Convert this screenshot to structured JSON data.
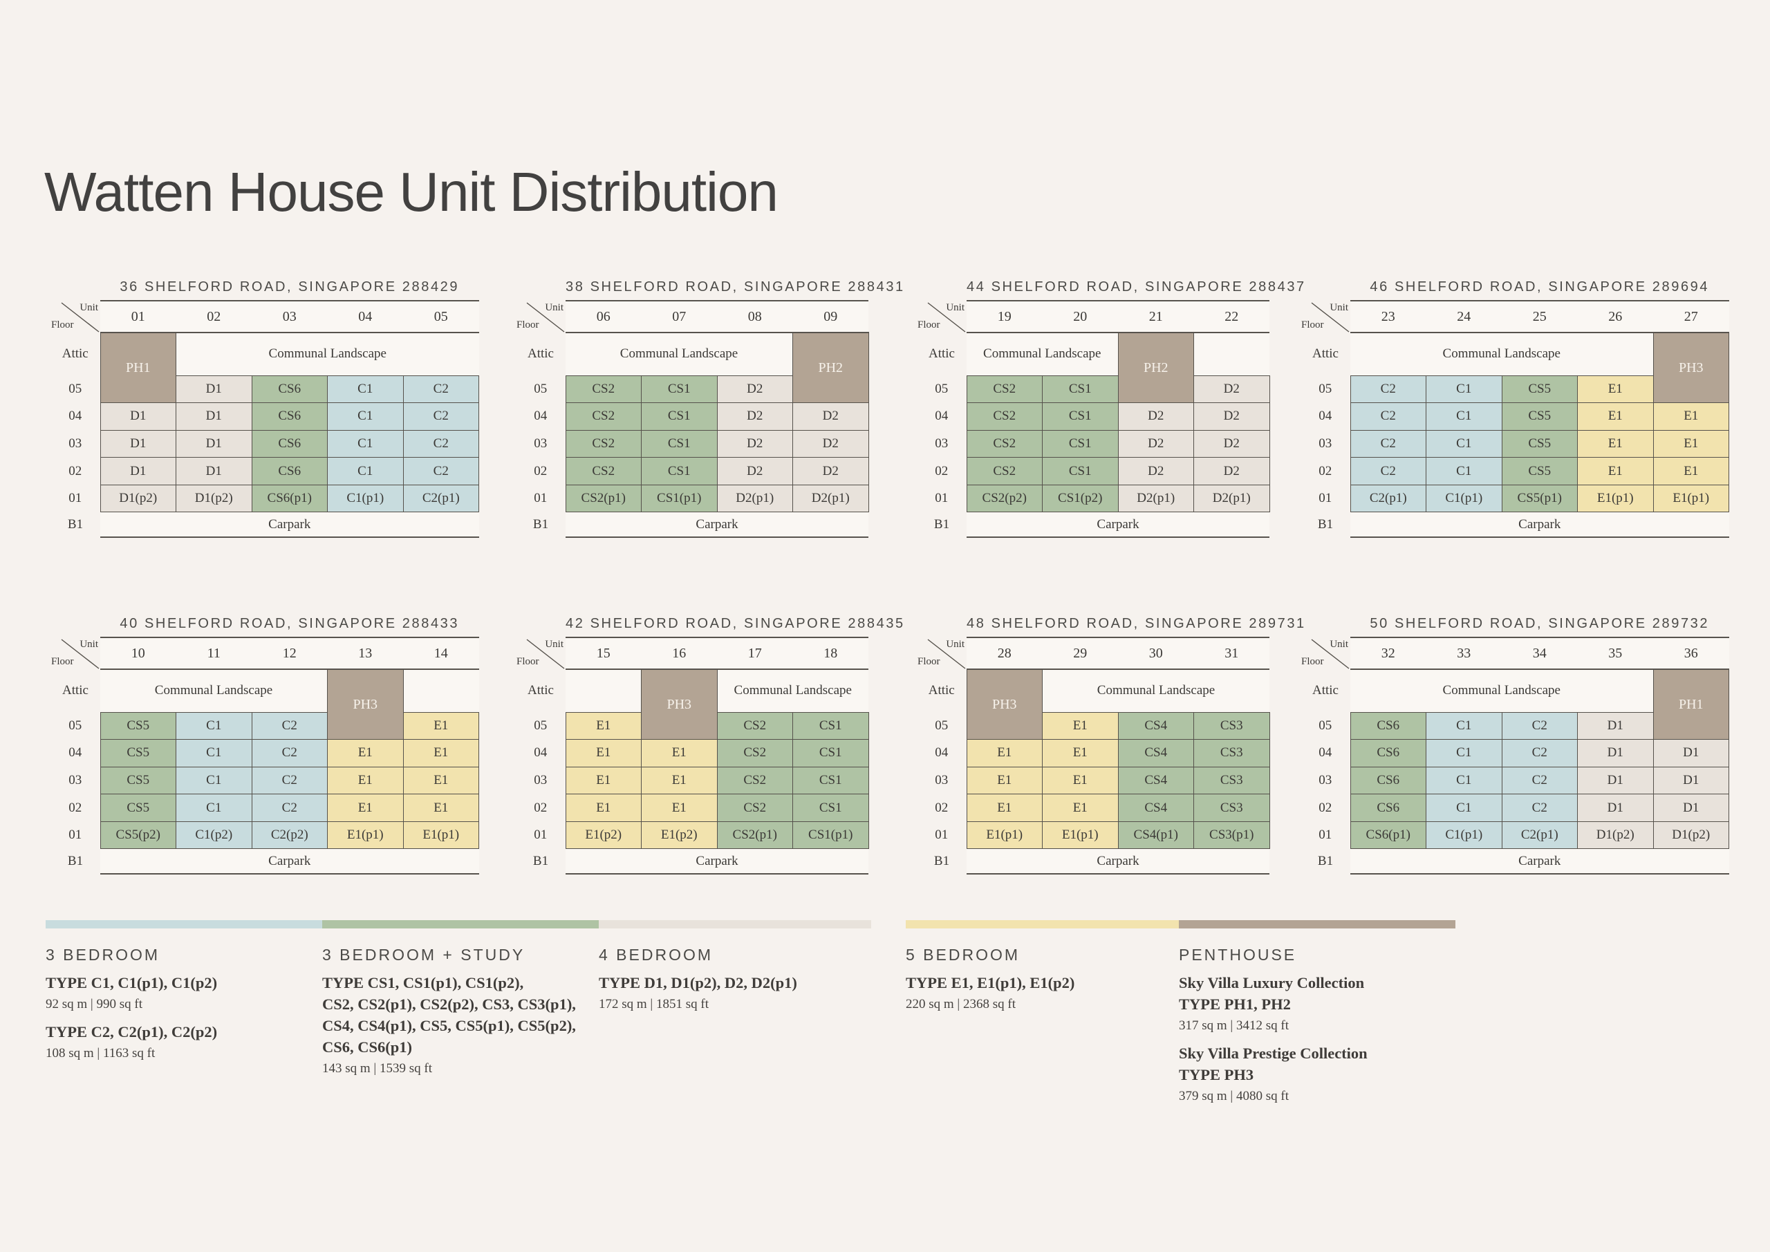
{
  "page": {
    "title": "Watten House Unit Distribution"
  },
  "axis": {
    "unit_label": "Unit",
    "floor_label": "Floor"
  },
  "labels": {
    "attic": "Attic",
    "basement": "B1",
    "communal": "Communal Landscape",
    "carpark": "Carpark"
  },
  "colors": {
    "bg": "#f6f2ee",
    "cell_white": "#faf7f3",
    "bed3": "#c8dcde",
    "bed3_study": "#afc3a4",
    "bed4": "#e8e2db",
    "bed5": "#f2e3ae",
    "penthouse": "#b3a494",
    "border": "#55514b",
    "rule": "#57534d"
  },
  "buildings": [
    {
      "address": "36 SHELFORD ROAD, SINGAPORE 288429",
      "units": [
        "01",
        "02",
        "03",
        "04",
        "05"
      ],
      "ph": {
        "label": "PH1",
        "col": 0
      },
      "communal_span": {
        "start": 1,
        "end": 4
      },
      "floors": [
        {
          "floor": "05",
          "cells": [
            "",
            "D1",
            "CS6",
            "C1",
            "C2"
          ]
        },
        {
          "floor": "04",
          "cells": [
            "D1",
            "D1",
            "CS6",
            "C1",
            "C2"
          ]
        },
        {
          "floor": "03",
          "cells": [
            "D1",
            "D1",
            "CS6",
            "C1",
            "C2"
          ]
        },
        {
          "floor": "02",
          "cells": [
            "D1",
            "D1",
            "CS6",
            "C1",
            "C2"
          ]
        },
        {
          "floor": "01",
          "cells": [
            "D1(p2)",
            "D1(p2)",
            "CS6(p1)",
            "C1(p1)",
            "C2(p1)"
          ]
        }
      ]
    },
    {
      "address": "38 SHELFORD ROAD, SINGAPORE 288431",
      "units": [
        "06",
        "07",
        "08",
        "09"
      ],
      "ph": {
        "label": "PH2",
        "col": 3
      },
      "communal_span": {
        "start": 0,
        "end": 2
      },
      "floors": [
        {
          "floor": "05",
          "cells": [
            "CS2",
            "CS1",
            "D2",
            ""
          ]
        },
        {
          "floor": "04",
          "cells": [
            "CS2",
            "CS1",
            "D2",
            "D2"
          ]
        },
        {
          "floor": "03",
          "cells": [
            "CS2",
            "CS1",
            "D2",
            "D2"
          ]
        },
        {
          "floor": "02",
          "cells": [
            "CS2",
            "CS1",
            "D2",
            "D2"
          ]
        },
        {
          "floor": "01",
          "cells": [
            "CS2(p1)",
            "CS1(p1)",
            "D2(p1)",
            "D2(p1)"
          ]
        }
      ]
    },
    {
      "address": "44 SHELFORD ROAD, SINGAPORE 288437",
      "units": [
        "19",
        "20",
        "21",
        "22"
      ],
      "ph": {
        "label": "PH2",
        "col": 2
      },
      "communal_span": {
        "start": 0,
        "end": 1
      },
      "floors": [
        {
          "floor": "05",
          "cells": [
            "CS2",
            "CS1",
            "",
            "D2"
          ]
        },
        {
          "floor": "04",
          "cells": [
            "CS2",
            "CS1",
            "D2",
            "D2"
          ]
        },
        {
          "floor": "03",
          "cells": [
            "CS2",
            "CS1",
            "D2",
            "D2"
          ]
        },
        {
          "floor": "02",
          "cells": [
            "CS2",
            "CS1",
            "D2",
            "D2"
          ]
        },
        {
          "floor": "01",
          "cells": [
            "CS2(p2)",
            "CS1(p2)",
            "D2(p1)",
            "D2(p1)"
          ]
        }
      ]
    },
    {
      "address": "46 SHELFORD ROAD, SINGAPORE 289694",
      "units": [
        "23",
        "24",
        "25",
        "26",
        "27"
      ],
      "ph": {
        "label": "PH3",
        "col": 4
      },
      "communal_span": {
        "start": 0,
        "end": 3
      },
      "floors": [
        {
          "floor": "05",
          "cells": [
            "C2",
            "C1",
            "CS5",
            "E1",
            ""
          ]
        },
        {
          "floor": "04",
          "cells": [
            "C2",
            "C1",
            "CS5",
            "E1",
            "E1"
          ]
        },
        {
          "floor": "03",
          "cells": [
            "C2",
            "C1",
            "CS5",
            "E1",
            "E1"
          ]
        },
        {
          "floor": "02",
          "cells": [
            "C2",
            "C1",
            "CS5",
            "E1",
            "E1"
          ]
        },
        {
          "floor": "01",
          "cells": [
            "C2(p1)",
            "C1(p1)",
            "CS5(p1)",
            "E1(p1)",
            "E1(p1)"
          ]
        }
      ]
    },
    {
      "address": "40 SHELFORD ROAD, SINGAPORE 288433",
      "units": [
        "10",
        "11",
        "12",
        "13",
        "14"
      ],
      "ph": {
        "label": "PH3",
        "col": 3
      },
      "communal_span": {
        "start": 0,
        "end": 2
      },
      "floors": [
        {
          "floor": "05",
          "cells": [
            "CS5",
            "C1",
            "C2",
            "",
            "E1"
          ]
        },
        {
          "floor": "04",
          "cells": [
            "CS5",
            "C1",
            "C2",
            "E1",
            "E1"
          ]
        },
        {
          "floor": "03",
          "cells": [
            "CS5",
            "C1",
            "C2",
            "E1",
            "E1"
          ]
        },
        {
          "floor": "02",
          "cells": [
            "CS5",
            "C1",
            "C2",
            "E1",
            "E1"
          ]
        },
        {
          "floor": "01",
          "cells": [
            "CS5(p2)",
            "C1(p2)",
            "C2(p2)",
            "E1(p1)",
            "E1(p1)"
          ]
        }
      ]
    },
    {
      "address": "42 SHELFORD ROAD, SINGAPORE 288435",
      "units": [
        "15",
        "16",
        "17",
        "18"
      ],
      "ph": {
        "label": "PH3",
        "col": 1
      },
      "communal_span": {
        "start": 2,
        "end": 3
      },
      "floors": [
        {
          "floor": "05",
          "cells": [
            "E1",
            "",
            "CS2",
            "CS1"
          ]
        },
        {
          "floor": "04",
          "cells": [
            "E1",
            "E1",
            "CS2",
            "CS1"
          ]
        },
        {
          "floor": "03",
          "cells": [
            "E1",
            "E1",
            "CS2",
            "CS1"
          ]
        },
        {
          "floor": "02",
          "cells": [
            "E1",
            "E1",
            "CS2",
            "CS1"
          ]
        },
        {
          "floor": "01",
          "cells": [
            "E1(p2)",
            "E1(p2)",
            "CS2(p1)",
            "CS1(p1)"
          ]
        }
      ]
    },
    {
      "address": "48 SHELFORD ROAD, SINGAPORE 289731",
      "units": [
        "28",
        "29",
        "30",
        "31"
      ],
      "ph": {
        "label": "PH3",
        "col": 0
      },
      "communal_span": {
        "start": 1,
        "end": 3
      },
      "floors": [
        {
          "floor": "05",
          "cells": [
            "",
            "E1",
            "CS4",
            "CS3"
          ]
        },
        {
          "floor": "04",
          "cells": [
            "E1",
            "E1",
            "CS4",
            "CS3"
          ]
        },
        {
          "floor": "03",
          "cells": [
            "E1",
            "E1",
            "CS4",
            "CS3"
          ]
        },
        {
          "floor": "02",
          "cells": [
            "E1",
            "E1",
            "CS4",
            "CS3"
          ]
        },
        {
          "floor": "01",
          "cells": [
            "E1(p1)",
            "E1(p1)",
            "CS4(p1)",
            "CS3(p1)"
          ]
        }
      ]
    },
    {
      "address": "50 SHELFORD ROAD, SINGAPORE 289732",
      "units": [
        "32",
        "33",
        "34",
        "35",
        "36"
      ],
      "ph": {
        "label": "PH1",
        "col": 4
      },
      "communal_span": {
        "start": 0,
        "end": 3
      },
      "floors": [
        {
          "floor": "05",
          "cells": [
            "CS6",
            "C1",
            "C2",
            "D1",
            ""
          ]
        },
        {
          "floor": "04",
          "cells": [
            "CS6",
            "C1",
            "C2",
            "D1",
            "D1"
          ]
        },
        {
          "floor": "03",
          "cells": [
            "CS6",
            "C1",
            "C2",
            "D1",
            "D1"
          ]
        },
        {
          "floor": "02",
          "cells": [
            "CS6",
            "C1",
            "C2",
            "D1",
            "D1"
          ]
        },
        {
          "floor": "01",
          "cells": [
            "CS6(p1)",
            "C1(p1)",
            "C2(p1)",
            "D1(p2)",
            "D1(p2)"
          ]
        }
      ]
    }
  ],
  "legend": [
    {
      "label": "3 BEDROOM",
      "color": "#c8dcde",
      "entries": [
        {
          "type_lines": [
            "TYPE C1, C1(p1), C1(p2)"
          ],
          "size": "92 sq m | 990 sq ft"
        },
        {
          "type_lines": [
            "TYPE C2, C2(p1), C2(p2)"
          ],
          "size": "108 sq m | 1163 sq ft"
        }
      ]
    },
    {
      "label": "3 BEDROOM + STUDY",
      "color": "#afc3a4",
      "entries": [
        {
          "type_lines": [
            "TYPE CS1, CS1(p1), CS1(p2),",
            "CS2, CS2(p1), CS2(p2), CS3, CS3(p1),",
            "CS4, CS4(p1), CS5, CS5(p1), CS5(p2),",
            "CS6, CS6(p1)"
          ],
          "size": "143 sq m | 1539 sq ft"
        }
      ]
    },
    {
      "label": "4 BEDROOM",
      "color": "#e8e2db",
      "entries": [
        {
          "type_lines": [
            "TYPE D1, D1(p2), D2, D2(p1)"
          ],
          "size": "172 sq m | 1851 sq ft"
        }
      ]
    },
    {
      "label": "5 BEDROOM",
      "color": "#f2e3ae",
      "entries": [
        {
          "type_lines": [
            "TYPE E1, E1(p1), E1(p2)"
          ],
          "size": "220 sq m | 2368 sq ft"
        }
      ]
    },
    {
      "label": "PENTHOUSE",
      "color": "#b3a494",
      "entries": [
        {
          "collection": "Sky Villa Luxury Collection",
          "type_lines": [
            "TYPE PH1, PH2"
          ],
          "size": "317 sq m | 3412 sq ft"
        },
        {
          "collection": "Sky Villa Prestige Collection",
          "type_lines": [
            "TYPE PH3"
          ],
          "size": "379 sq m | 4080 sq ft"
        }
      ]
    }
  ]
}
